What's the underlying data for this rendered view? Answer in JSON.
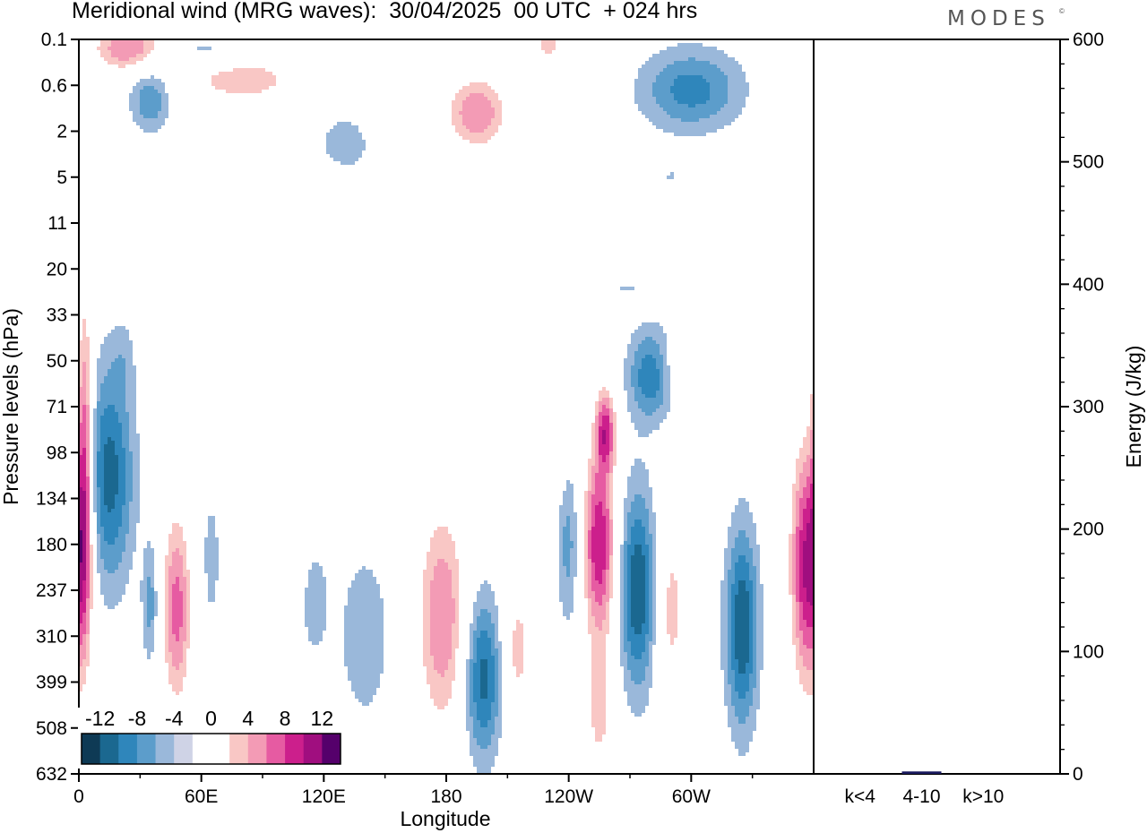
{
  "title": "Meridional wind (MRG waves):  30/04/2025  00 UTC  + 024 hrs",
  "brand": "MODES",
  "brand_mark": "©",
  "chart_data": [
    {
      "type": "heatmap",
      "title": "Meridional wind (MRG waves):  30/04/2025  00 UTC  + 024 hrs",
      "xlabel": "Longitude",
      "ylabel": "Pressure levels (hPa)",
      "x_ticks": [
        "0",
        "60E",
        "120E",
        "180",
        "120W",
        "60W"
      ],
      "y_ticks": [
        "0.1",
        "0.6",
        "2",
        "5",
        "11",
        "20",
        "33",
        "50",
        "71",
        "98",
        "134",
        "180",
        "237",
        "310",
        "399",
        "508",
        "632"
      ],
      "grid": false,
      "colorbar": {
        "labels": [
          "-12",
          "-8",
          "-4",
          "0",
          "4",
          "8",
          "12"
        ],
        "colors": [
          "#0e3a55",
          "#1b6890",
          "#2f86bb",
          "#5c9dcb",
          "#9ab8da",
          "#cfd3e6",
          "#ffffff",
          "#ffffff",
          "#f9c7c5",
          "#f39bb5",
          "#e65ba2",
          "#cc1f8c",
          "#a00e7f",
          "#55006b"
        ]
      },
      "blobs": [
        {
          "lon": 15,
          "lev": 9.5,
          "w": 12,
          "h": 2.4,
          "v": -9
        },
        {
          "lon": 3,
          "lev": 9.2,
          "w": 4,
          "h": 3.4,
          "v": 10
        },
        {
          "lon": 35,
          "lev": 12.3,
          "w": 4,
          "h": 1.3,
          "v": -5
        },
        {
          "lon": 48,
          "lev": 12.4,
          "w": 7,
          "h": 2.1,
          "v": 9
        },
        {
          "lon": 65,
          "lev": 11.3,
          "w": 5,
          "h": 1.6,
          "v": -3
        },
        {
          "lon": 95,
          "lev": 11.5,
          "w": 15,
          "h": 1.5,
          "v": 3
        },
        {
          "lon": 115,
          "lev": 12.2,
          "w": 8,
          "h": 1.4,
          "v": -3.5
        },
        {
          "lon": 140,
          "lev": 13.0,
          "w": 12,
          "h": 1.8,
          "v": -4
        },
        {
          "lon": 178,
          "lev": 12.6,
          "w": 12,
          "h": 2.4,
          "v": 8
        },
        {
          "lon": 198,
          "lev": 13.9,
          "w": 9,
          "h": 1.8,
          "v": -9
        },
        {
          "lon": 215,
          "lev": 13.3,
          "w": 7,
          "h": 1.5,
          "v": 5
        },
        {
          "lon": 225,
          "lev": 11.8,
          "w": 5,
          "h": 1.3,
          "v": 3
        },
        {
          "lon": 240,
          "lev": 11.0,
          "w": 6,
          "h": 1.8,
          "v": -5
        },
        {
          "lon": 255,
          "lev": 11.0,
          "w": 8,
          "h": 2.0,
          "v": 12
        },
        {
          "lon": 255,
          "lev": 14.6,
          "w": 7,
          "h": 1.4,
          "v": 5
        },
        {
          "lon": 274,
          "lev": 12.0,
          "w": 9,
          "h": 2.2,
          "v": -10
        },
        {
          "lon": 290,
          "lev": 12.4,
          "w": 8,
          "h": 2.0,
          "v": 5
        },
        {
          "lon": 306,
          "lev": 12.5,
          "w": 6,
          "h": 2.0,
          "v": -2
        },
        {
          "lon": 325,
          "lev": 12.8,
          "w": 8,
          "h": 2.2,
          "v": -10
        },
        {
          "lon": 357,
          "lev": 11.4,
          "w": 8,
          "h": 2.6,
          "v": 13
        },
        {
          "lon": 235,
          "lev": 8.4,
          "w": 5,
          "h": 1.4,
          "v": 3
        },
        {
          "lon": 258,
          "lev": 8.5,
          "w": 5,
          "h": 0.9,
          "v": 10
        },
        {
          "lon": 280,
          "lev": 7.3,
          "w": 11,
          "h": 1.0,
          "v": -8
        },
        {
          "lon": 300,
          "lev": 7.1,
          "w": 17,
          "h": 0.6,
          "v": 3
        },
        {
          "lon": 45,
          "lev": 6.5,
          "w": 10,
          "h": 0.6,
          "v": 2.5
        },
        {
          "lon": 22,
          "lev": 6.9,
          "w": 6,
          "h": 0.8,
          "v": -2
        },
        {
          "lon": 60,
          "lev": 4.1,
          "w": 12,
          "h": 0.5,
          "v": -2
        },
        {
          "lon": 220,
          "lev": 4.5,
          "w": 15,
          "h": 0.3,
          "v": 2
        },
        {
          "lon": 267,
          "lev": 5.4,
          "w": 20,
          "h": 0.3,
          "v": -2
        },
        {
          "lon": 25,
          "lev": 0.2,
          "w": 18,
          "h": 0.5,
          "v": 9
        },
        {
          "lon": 65,
          "lev": 0.3,
          "w": 35,
          "h": 0.4,
          "v": -4
        },
        {
          "lon": 80,
          "lev": 0.8,
          "w": 30,
          "h": 0.6,
          "v": 6
        },
        {
          "lon": 35,
          "lev": 1.3,
          "w": 10,
          "h": 0.7,
          "v": -6
        },
        {
          "lon": 130,
          "lev": 2.3,
          "w": 12,
          "h": 0.6,
          "v": -4
        },
        {
          "lon": 195,
          "lev": 1.6,
          "w": 15,
          "h": 0.8,
          "v": 8
        },
        {
          "lon": 170,
          "lev": 3.2,
          "w": 15,
          "h": 0.5,
          "v": 4
        },
        {
          "lon": 230,
          "lev": 0.1,
          "w": 8,
          "h": 0.4,
          "v": 5
        },
        {
          "lon": 300,
          "lev": 1.1,
          "w": 25,
          "h": 0.9,
          "v": -7
        },
        {
          "lon": 115,
          "lev": 3.0,
          "w": 15,
          "h": 0.4,
          "v": 2.5
        },
        {
          "lon": 290,
          "lev": 3.0,
          "w": 8,
          "h": 0.4,
          "v": -2
        }
      ]
    },
    {
      "type": "bar",
      "categories": [
        "k<4",
        "4-10",
        "k>10"
      ],
      "values": [
        0,
        2,
        0
      ],
      "ylabel": "Energy (J/kg)",
      "ylim": [
        0,
        600
      ],
      "y_ticks": [
        "0",
        "100",
        "200",
        "300",
        "400",
        "500",
        "600"
      ],
      "bar_color": "#1a1a5e"
    }
  ]
}
